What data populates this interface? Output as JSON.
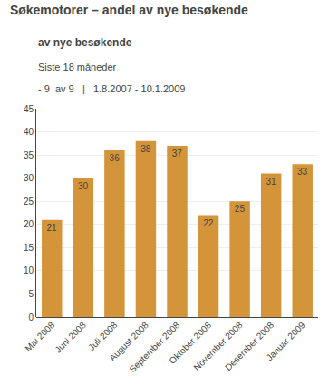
{
  "chart_data": {
    "type": "bar",
    "title": "Søkemotorer – andel av nye besøkende",
    "subtitle": "av nye besøkende",
    "annotations": [
      "Siste 18 måneder",
      "- 9  av 9   |   1.8.2007 - 10.1.2009"
    ],
    "categories": [
      "Mai 2008",
      "Juni 2008",
      "Juli 2008",
      "August 2008",
      "September 2008",
      "Oktober 2008",
      "November 2008",
      "Desember 2008",
      "Januar 2009"
    ],
    "values": [
      21,
      30,
      36,
      38,
      37,
      22,
      25,
      31,
      33
    ],
    "color": "#d4943a",
    "ylim": [
      0,
      45
    ],
    "yticks": [
      0,
      5,
      10,
      15,
      20,
      25,
      30,
      35,
      40,
      45
    ],
    "grid": true,
    "data_labels": true
  }
}
